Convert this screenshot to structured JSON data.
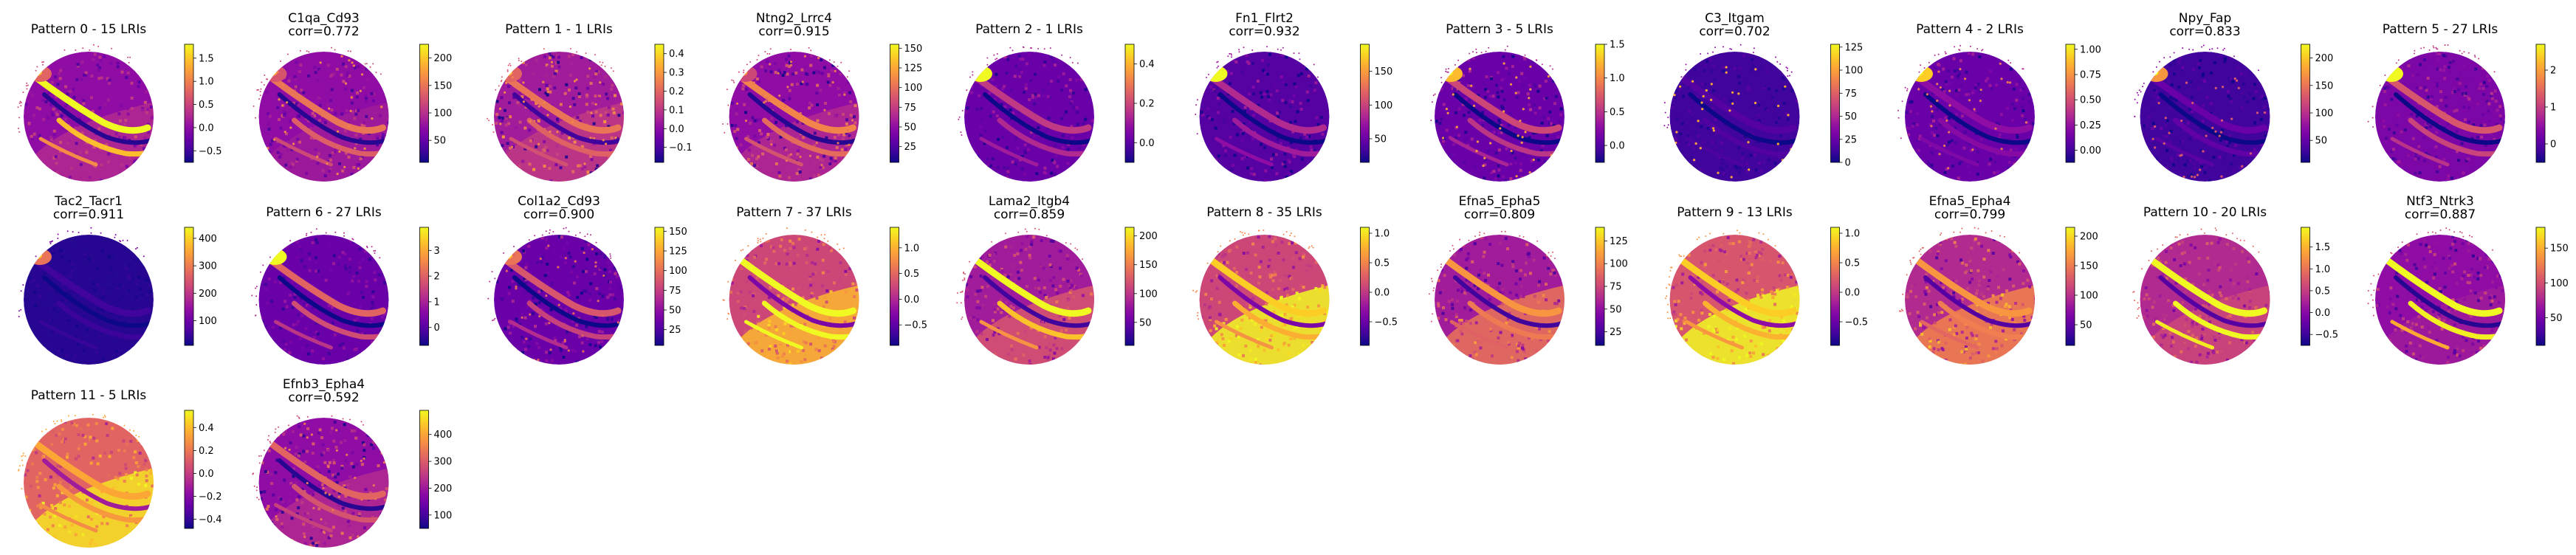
{
  "chart_data": [
    {
      "type": "heatmap",
      "title": "Pattern 0 - 15 LRIs",
      "subtitle": "",
      "colorbar_ticks": [
        "−0.5",
        "0.0",
        "0.5",
        "1.0",
        "1.5"
      ],
      "vmin": -0.75,
      "vmax": 1.8,
      "base": 0.3,
      "hot_spot": 0.2,
      "bands": 0.7,
      "speckle": 0.25,
      "outer_zone": 0.1,
      "cells": 0.0
    },
    {
      "type": "heatmap",
      "title": "C1qa_Cd93",
      "subtitle": "corr=0.772",
      "colorbar_ticks": [
        "50",
        "100",
        "150",
        "200"
      ],
      "vmin": 10,
      "vmax": 225,
      "base": 0.3,
      "hot_spot": 0.15,
      "bands": 0.35,
      "speckle": 0.3,
      "outer_zone": 0.05,
      "cells": 0.1
    },
    {
      "type": "heatmap",
      "title": "Pattern 1 - 1 LRIs",
      "subtitle": "",
      "colorbar_ticks": [
        "−0.1",
        "0.0",
        "0.1",
        "0.2",
        "0.3",
        "0.4"
      ],
      "vmin": -0.18,
      "vmax": 0.45,
      "base": 0.35,
      "hot_spot": 0.15,
      "bands": 0.3,
      "speckle": 0.5,
      "outer_zone": 0.1,
      "cells": 0.05
    },
    {
      "type": "heatmap",
      "title": "Ntng2_Lrrc4",
      "subtitle": "corr=0.915",
      "colorbar_ticks": [
        "25",
        "50",
        "75",
        "100",
        "125",
        "150"
      ],
      "vmin": 5,
      "vmax": 155,
      "base": 0.3,
      "hot_spot": 0.1,
      "bands": 0.4,
      "speckle": 0.4,
      "outer_zone": 0.1,
      "cells": 0.05
    },
    {
      "type": "heatmap",
      "title": "Pattern 2 - 1 LRIs",
      "subtitle": "",
      "colorbar_ticks": [
        "0.0",
        "0.2",
        "0.4"
      ],
      "vmin": -0.1,
      "vmax": 0.5,
      "base": 0.2,
      "hot_spot": 0.7,
      "bands": 0.25,
      "speckle": 0.25,
      "outer_zone": 0.0,
      "cells": 0.0
    },
    {
      "type": "heatmap",
      "title": "Fn1_Flrt2",
      "subtitle": "corr=0.932",
      "colorbar_ticks": [
        "50",
        "100",
        "150"
      ],
      "vmin": 15,
      "vmax": 190,
      "base": 0.15,
      "hot_spot": 0.8,
      "bands": 0.25,
      "speckle": 0.3,
      "outer_zone": 0.0,
      "cells": 0.0
    },
    {
      "type": "heatmap",
      "title": "Pattern 3 - 5 LRIs",
      "subtitle": "",
      "colorbar_ticks": [
        "0.0",
        "0.5",
        "1.0",
        "1.5"
      ],
      "vmin": -0.25,
      "vmax": 1.5,
      "base": 0.2,
      "hot_spot": 0.55,
      "bands": 0.3,
      "speckle": 0.3,
      "outer_zone": 0.0,
      "cells": 0.25
    },
    {
      "type": "heatmap",
      "title": "C3_Itgam",
      "subtitle": "corr=0.702",
      "colorbar_ticks": [
        "0",
        "25",
        "50",
        "75",
        "100",
        "125"
      ],
      "vmin": 0,
      "vmax": 128,
      "base": 0.1,
      "hot_spot": 0.0,
      "bands": 0.05,
      "speckle": 0.1,
      "outer_zone": 0.0,
      "cells": 0.4
    },
    {
      "type": "heatmap",
      "title": "Pattern 4 - 2 LRIs",
      "subtitle": "",
      "colorbar_ticks": [
        "0.00",
        "0.25",
        "0.50",
        "0.75",
        "1.00"
      ],
      "vmin": -0.12,
      "vmax": 1.05,
      "base": 0.2,
      "hot_spot": 0.6,
      "bands": 0.1,
      "speckle": 0.25,
      "outer_zone": 0.0,
      "cells": 0.15
    },
    {
      "type": "heatmap",
      "title": "Npy_Fap",
      "subtitle": "corr=0.833",
      "colorbar_ticks": [
        "50",
        "100",
        "150",
        "200"
      ],
      "vmin": 10,
      "vmax": 225,
      "base": 0.1,
      "hot_spot": 0.55,
      "bands": 0.1,
      "speckle": 0.15,
      "outer_zone": 0.0,
      "cells": 0.15
    },
    {
      "type": "heatmap",
      "title": "Pattern 5 - 27 LRIs",
      "subtitle": "",
      "colorbar_ticks": [
        "0",
        "1",
        "2"
      ],
      "vmin": -0.5,
      "vmax": 2.7,
      "base": 0.25,
      "hot_spot": 0.75,
      "bands": 0.3,
      "speckle": 0.25,
      "outer_zone": 0.0,
      "cells": 0.0
    },
    {
      "type": "heatmap",
      "title": "Tac2_Tacr1",
      "subtitle": "corr=0.911",
      "colorbar_ticks": [
        "100",
        "200",
        "300",
        "400"
      ],
      "vmin": 10,
      "vmax": 440,
      "base": 0.05,
      "hot_spot": 0.5,
      "bands": 0.05,
      "speckle": 0.05,
      "outer_zone": 0.0,
      "cells": 0.0
    },
    {
      "type": "heatmap",
      "title": "Pattern 6 - 27 LRIs",
      "subtitle": "",
      "colorbar_ticks": [
        "0",
        "1",
        "2",
        "3"
      ],
      "vmin": -0.7,
      "vmax": 3.9,
      "base": 0.2,
      "hot_spot": 0.7,
      "bands": 0.4,
      "speckle": 0.2,
      "outer_zone": 0.0,
      "cells": 0.0
    },
    {
      "type": "heatmap",
      "title": "Col1a2_Cd93",
      "subtitle": "corr=0.900",
      "colorbar_ticks": [
        "25",
        "50",
        "75",
        "100",
        "125",
        "150"
      ],
      "vmin": 5,
      "vmax": 155,
      "base": 0.2,
      "hot_spot": 0.35,
      "bands": 0.35,
      "speckle": 0.3,
      "outer_zone": 0.0,
      "cells": 0.1
    },
    {
      "type": "heatmap",
      "title": "Pattern 7 - 37 LRIs",
      "subtitle": "",
      "colorbar_ticks": [
        "−0.5",
        "0.0",
        "0.5",
        "1.0"
      ],
      "vmin": -0.9,
      "vmax": 1.4,
      "base": 0.5,
      "hot_spot": 0.0,
      "bands": 0.85,
      "speckle": 0.3,
      "outer_zone": 0.35,
      "cells": 0.0
    },
    {
      "type": "heatmap",
      "title": "Lama2_Itgb4",
      "subtitle": "corr=0.859",
      "colorbar_ticks": [
        "50",
        "100",
        "150",
        "200"
      ],
      "vmin": 10,
      "vmax": 215,
      "base": 0.35,
      "hot_spot": 0.0,
      "bands": 0.65,
      "speckle": 0.3,
      "outer_zone": 0.2,
      "cells": 0.0
    },
    {
      "type": "heatmap",
      "title": "Pattern 8 - 35 LRIs",
      "subtitle": "",
      "colorbar_ticks": [
        "−0.5",
        "0.0",
        "0.5",
        "1.0"
      ],
      "vmin": -0.9,
      "vmax": 1.1,
      "base": 0.5,
      "hot_spot": 0.0,
      "bands": 0.4,
      "speckle": 0.3,
      "outer_zone": 0.6,
      "cells": 0.0
    },
    {
      "type": "heatmap",
      "title": "Efna5_Epha5",
      "subtitle": "corr=0.809",
      "colorbar_ticks": [
        "25",
        "50",
        "75",
        "100",
        "125"
      ],
      "vmin": 10,
      "vmax": 140,
      "base": 0.35,
      "hot_spot": 0.0,
      "bands": 0.4,
      "speckle": 0.35,
      "outer_zone": 0.3,
      "cells": 0.0
    },
    {
      "type": "heatmap",
      "title": "Pattern 9 - 13 LRIs",
      "subtitle": "",
      "colorbar_ticks": [
        "−0.5",
        "0.0",
        "0.5",
        "1.0"
      ],
      "vmin": -0.9,
      "vmax": 1.1,
      "base": 0.55,
      "hot_spot": 0.0,
      "bands": 0.35,
      "speckle": 0.3,
      "outer_zone": 0.5,
      "cells": 0.0
    },
    {
      "type": "heatmap",
      "title": "Efna5_Epha4",
      "subtitle": "corr=0.799",
      "colorbar_ticks": [
        "50",
        "100",
        "150",
        "200"
      ],
      "vmin": 15,
      "vmax": 215,
      "base": 0.4,
      "hot_spot": 0.0,
      "bands": 0.35,
      "speckle": 0.4,
      "outer_zone": 0.3,
      "cells": 0.0
    },
    {
      "type": "heatmap",
      "title": "Pattern 10 - 20 LRIs",
      "subtitle": "",
      "colorbar_ticks": [
        "−0.5",
        "0.0",
        "0.5",
        "1.0",
        "1.5"
      ],
      "vmin": -0.75,
      "vmax": 1.95,
      "base": 0.4,
      "hot_spot": 0.0,
      "bands": 0.95,
      "speckle": 0.25,
      "outer_zone": 0.1,
      "cells": 0.0
    },
    {
      "type": "heatmap",
      "title": "Ntf3_Ntrk3",
      "subtitle": "corr=0.887",
      "colorbar_ticks": [
        "50",
        "100",
        "150"
      ],
      "vmin": 10,
      "vmax": 180,
      "base": 0.3,
      "hot_spot": 0.0,
      "bands": 0.85,
      "speckle": 0.3,
      "outer_zone": 0.05,
      "cells": 0.0
    },
    {
      "type": "heatmap",
      "title": "Pattern 11 - 5 LRIs",
      "subtitle": "",
      "colorbar_ticks": [
        "−0.4",
        "−0.2",
        "0.0",
        "0.2",
        "0.4"
      ],
      "vmin": -0.48,
      "vmax": 0.55,
      "base": 0.6,
      "hot_spot": 0.0,
      "bands": 0.2,
      "speckle": 0.3,
      "outer_zone": 0.35,
      "cells": 0.0
    },
    {
      "type": "heatmap",
      "title": "Efnb3_Epha4",
      "subtitle": "corr=0.592",
      "colorbar_ticks": [
        "100",
        "200",
        "300",
        "400"
      ],
      "vmin": 50,
      "vmax": 490,
      "base": 0.3,
      "hot_spot": 0.0,
      "bands": 0.3,
      "speckle": 0.4,
      "outer_zone": 0.1,
      "cells": 0.05
    }
  ],
  "colormap": [
    "#0d0887",
    "#41049d",
    "#6a00a8",
    "#8f0da4",
    "#b12a90",
    "#cc4778",
    "#e16462",
    "#f2844b",
    "#fca636",
    "#fcce25",
    "#f0f921"
  ]
}
